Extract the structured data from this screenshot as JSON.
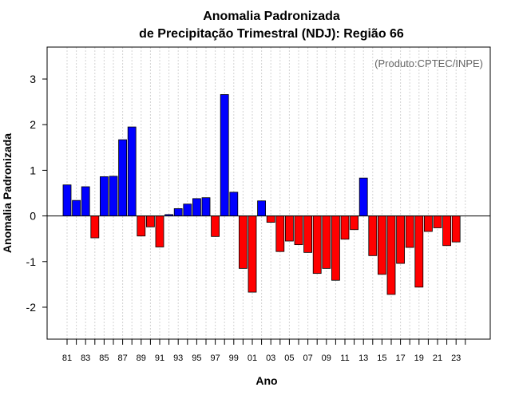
{
  "chart_data": {
    "type": "bar",
    "title": "Anomalia Padronizada",
    "subtitle": "de Precipitação Trimestral (NDJ): Região 66",
    "xlabel": "Ano",
    "ylabel": "Anomalia Padronizada",
    "annotation": "(Produto:CPTEC/INPE)",
    "ylim": [
      -2.7,
      3.7
    ],
    "yticks": [
      -2,
      -1,
      0,
      1,
      2,
      3
    ],
    "categories": [
      "81",
      "82",
      "83",
      "84",
      "85",
      "86",
      "87",
      "88",
      "89",
      "90",
      "91",
      "92",
      "93",
      "94",
      "95",
      "96",
      "97",
      "98",
      "99",
      "00",
      "01",
      "02",
      "03",
      "04",
      "05",
      "06",
      "07",
      "08",
      "09",
      "10",
      "11",
      "12",
      "13",
      "14",
      "15",
      "16",
      "17",
      "18",
      "19",
      "20",
      "21",
      "22",
      "23",
      "24"
    ],
    "tick_labels": [
      "81",
      "83",
      "85",
      "87",
      "89",
      "91",
      "93",
      "95",
      "97",
      "99",
      "01",
      "03",
      "05",
      "07",
      "09",
      "11",
      "13",
      "15",
      "17",
      "19",
      "21",
      "23"
    ],
    "values": [
      0.68,
      0.34,
      0.64,
      -0.48,
      0.86,
      0.87,
      1.67,
      1.95,
      -0.44,
      -0.24,
      -0.68,
      0.03,
      0.16,
      0.26,
      0.38,
      0.4,
      -0.45,
      2.66,
      0.52,
      -1.15,
      -1.67,
      0.33,
      -0.14,
      -0.78,
      -0.55,
      -0.63,
      -0.8,
      -1.26,
      -1.15,
      -1.41,
      -0.51,
      -0.3,
      0.83,
      -0.87,
      -1.28,
      -1.72,
      -1.04,
      -0.69,
      -1.56,
      -0.34,
      -0.26,
      -0.65,
      -0.57,
      0
    ],
    "grid": true,
    "colors": {
      "positive": "#0000ff",
      "negative": "#ff0000",
      "grid": "#d3d3d3",
      "zero_line": "#000000"
    }
  }
}
